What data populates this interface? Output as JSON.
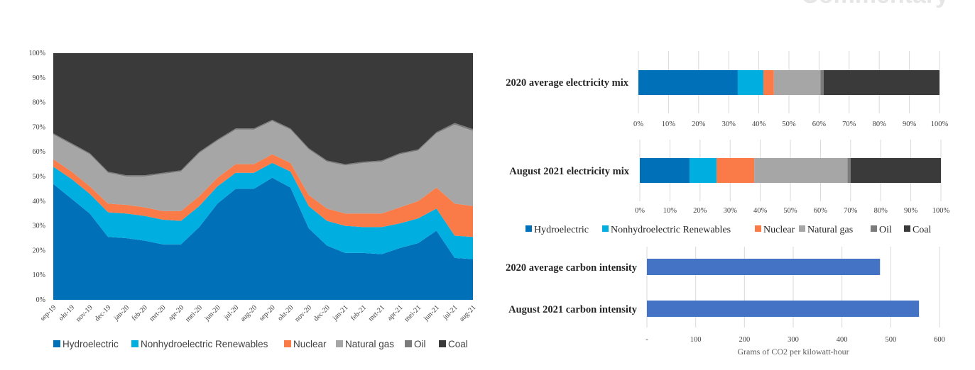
{
  "page": {
    "heading": "Commentary"
  },
  "colors": {
    "Hydroelectric": "#0070b8",
    "Nonhydroelectric Renewables": "#00aee0",
    "Nuclear": "#fa7b48",
    "Natural gas": "#a6a6a6",
    "Oil": "#7b7b7b",
    "Coal": "#3a3a3a",
    "intensity_bar": "#4472c4",
    "grid": "#d9d9d9",
    "heading": "#e6e6e6"
  },
  "chart_data": [
    {
      "type": "area",
      "stacked": "percent",
      "title": "",
      "x": [
        "sep-19",
        "okt-19",
        "nov-19",
        "dec-19",
        "jan-20",
        "feb-20",
        "mrt-20",
        "apr-20",
        "mei-20",
        "jun-20",
        "jul-20",
        "aug-20",
        "sep-20",
        "okt-20",
        "nov-20",
        "dec-20",
        "jan-21",
        "feb-21",
        "mrt-21",
        "apr-21",
        "mei-21",
        "jun-21",
        "jul-21",
        "aug-21"
      ],
      "ylim": [
        0,
        100
      ],
      "yticks": [
        "0%",
        "10%",
        "20%",
        "30%",
        "40%",
        "50%",
        "60%",
        "70%",
        "80%",
        "90%",
        "100%"
      ],
      "legend_position": "bottom",
      "series": [
        {
          "name": "Hydroelectric",
          "values": [
            47,
            41,
            35,
            25.5,
            25,
            24,
            22.5,
            22.5,
            29.5,
            39,
            45,
            45,
            49.5,
            45.5,
            29,
            22,
            19,
            19,
            18.5,
            21,
            23,
            28,
            17,
            16.5
          ]
        },
        {
          "name": "Nonhydroelectric Renewables",
          "values": [
            7,
            8,
            8,
            10,
            10,
            10,
            10,
            9.5,
            8.5,
            7,
            6.5,
            6.5,
            6,
            6.5,
            9,
            10,
            11,
            10.5,
            11,
            10,
            10,
            9,
            9,
            9
          ]
        },
        {
          "name": "Nuclear",
          "values": [
            3,
            3,
            3,
            3.5,
            3.5,
            3.5,
            3.5,
            4,
            4,
            3.5,
            3.5,
            3.5,
            3.5,
            3.5,
            4.5,
            5,
            5,
            5.5,
            5.5,
            6.5,
            7,
            8.5,
            13,
            12.5
          ]
        },
        {
          "name": "Natural gas",
          "values": [
            10,
            11,
            13,
            12.5,
            11.5,
            12.5,
            15,
            16,
            17.5,
            15,
            14,
            14,
            13.5,
            13.5,
            18.5,
            19,
            19.5,
            20.5,
            21,
            21.5,
            20.5,
            22,
            32,
            30.5
          ]
        },
        {
          "name": "Oil",
          "values": [
            0.5,
            0.5,
            0.5,
            0.5,
            0.5,
            0.5,
            0.5,
            0.5,
            0.5,
            0.5,
            0.5,
            0.5,
            0.5,
            0.5,
            0.5,
            0.5,
            0.5,
            0.5,
            0.5,
            0.5,
            0.5,
            0.5,
            0.7,
            0.7
          ]
        },
        {
          "name": "Coal",
          "values": [
            32.5,
            36.5,
            40.5,
            48,
            49.5,
            49.5,
            48.5,
            47.5,
            40,
            35,
            30.5,
            30.5,
            27,
            30.5,
            38.5,
            43.5,
            45,
            44,
            43.5,
            40.5,
            39,
            32,
            28.3,
            30.8
          ]
        }
      ]
    },
    {
      "type": "bar",
      "orientation": "horizontal",
      "stacked": "percent",
      "title": "2020 average electricity mix",
      "categories": [
        "2020 average electricity mix"
      ],
      "xticks": [
        "0%",
        "10%",
        "20%",
        "30%",
        "40%",
        "50%",
        "60%",
        "70%",
        "80%",
        "90%",
        "100%"
      ],
      "xlim": [
        0,
        100
      ],
      "series": [
        {
          "name": "Hydroelectric",
          "values": [
            33
          ]
        },
        {
          "name": "Nonhydroelectric Renewables",
          "values": [
            8.5
          ]
        },
        {
          "name": "Nuclear",
          "values": [
            3.5
          ]
        },
        {
          "name": "Natural gas",
          "values": [
            15.5
          ]
        },
        {
          "name": "Oil",
          "values": [
            1
          ]
        },
        {
          "name": "Coal",
          "values": [
            38.5
          ]
        }
      ]
    },
    {
      "type": "bar",
      "orientation": "horizontal",
      "stacked": "percent",
      "title": "August 2021 electricity mix",
      "categories": [
        "August 2021 electricity mix"
      ],
      "xticks": [
        "0%",
        "10%",
        "20%",
        "30%",
        "40%",
        "50%",
        "60%",
        "70%",
        "80%",
        "90%",
        "100%"
      ],
      "xlim": [
        0,
        100
      ],
      "legend_position": "bottom",
      "series": [
        {
          "name": "Hydroelectric",
          "values": [
            16.5
          ]
        },
        {
          "name": "Nonhydroelectric Renewables",
          "values": [
            9
          ]
        },
        {
          "name": "Nuclear",
          "values": [
            12.5
          ]
        },
        {
          "name": "Natural gas",
          "values": [
            31
          ]
        },
        {
          "name": "Oil",
          "values": [
            1
          ]
        },
        {
          "name": "Coal",
          "values": [
            30
          ]
        }
      ]
    },
    {
      "type": "bar",
      "orientation": "horizontal",
      "title": "",
      "categories": [
        "2020 average carbon intensity",
        "August 2021 carbon intensity"
      ],
      "values": [
        478,
        558
      ],
      "xlim": [
        0,
        600
      ],
      "xticks": [
        "-",
        "100",
        "200",
        "300",
        "400",
        "500",
        "600"
      ],
      "xlabel": "Grams of CO2 per kilowatt-hour"
    }
  ],
  "legend_items": [
    "Hydroelectric",
    "Nonhydroelectric Renewables",
    "Nuclear",
    "Natural gas",
    "Oil",
    "Coal"
  ]
}
